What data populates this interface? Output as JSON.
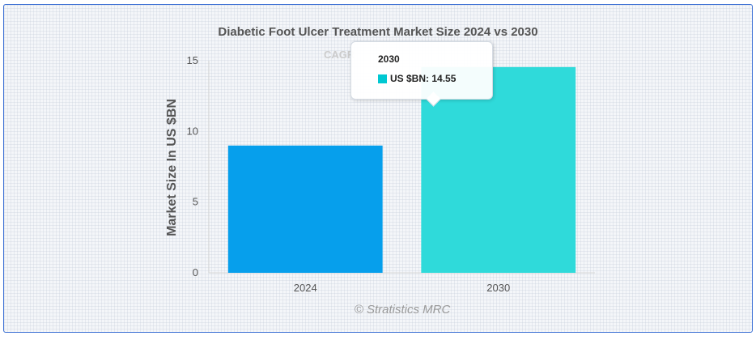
{
  "chart_data": {
    "type": "bar",
    "title": "Diabetic Foot Ulcer Treatment Market Size 2024 vs 2030",
    "subtitle": "CAGR",
    "xlabel": "",
    "ylabel": "Market Size In US $BN",
    "categories": [
      "2024",
      "2030"
    ],
    "values": [
      9.0,
      14.55
    ],
    "ylim": [
      0,
      15
    ],
    "yticks": [
      "0",
      "5",
      "10",
      "15"
    ],
    "bar_colors": [
      "#069fec",
      "#2fdada"
    ],
    "grid": false,
    "series": [
      {
        "name": "US $BN",
        "values": [
          9.0,
          14.55
        ]
      }
    ]
  },
  "tooltip": {
    "title": "2030",
    "series_label": "US $BN",
    "value_text": "14.55",
    "swatch_color": "#00c8d2"
  },
  "credit": "© Stratistics MRC"
}
